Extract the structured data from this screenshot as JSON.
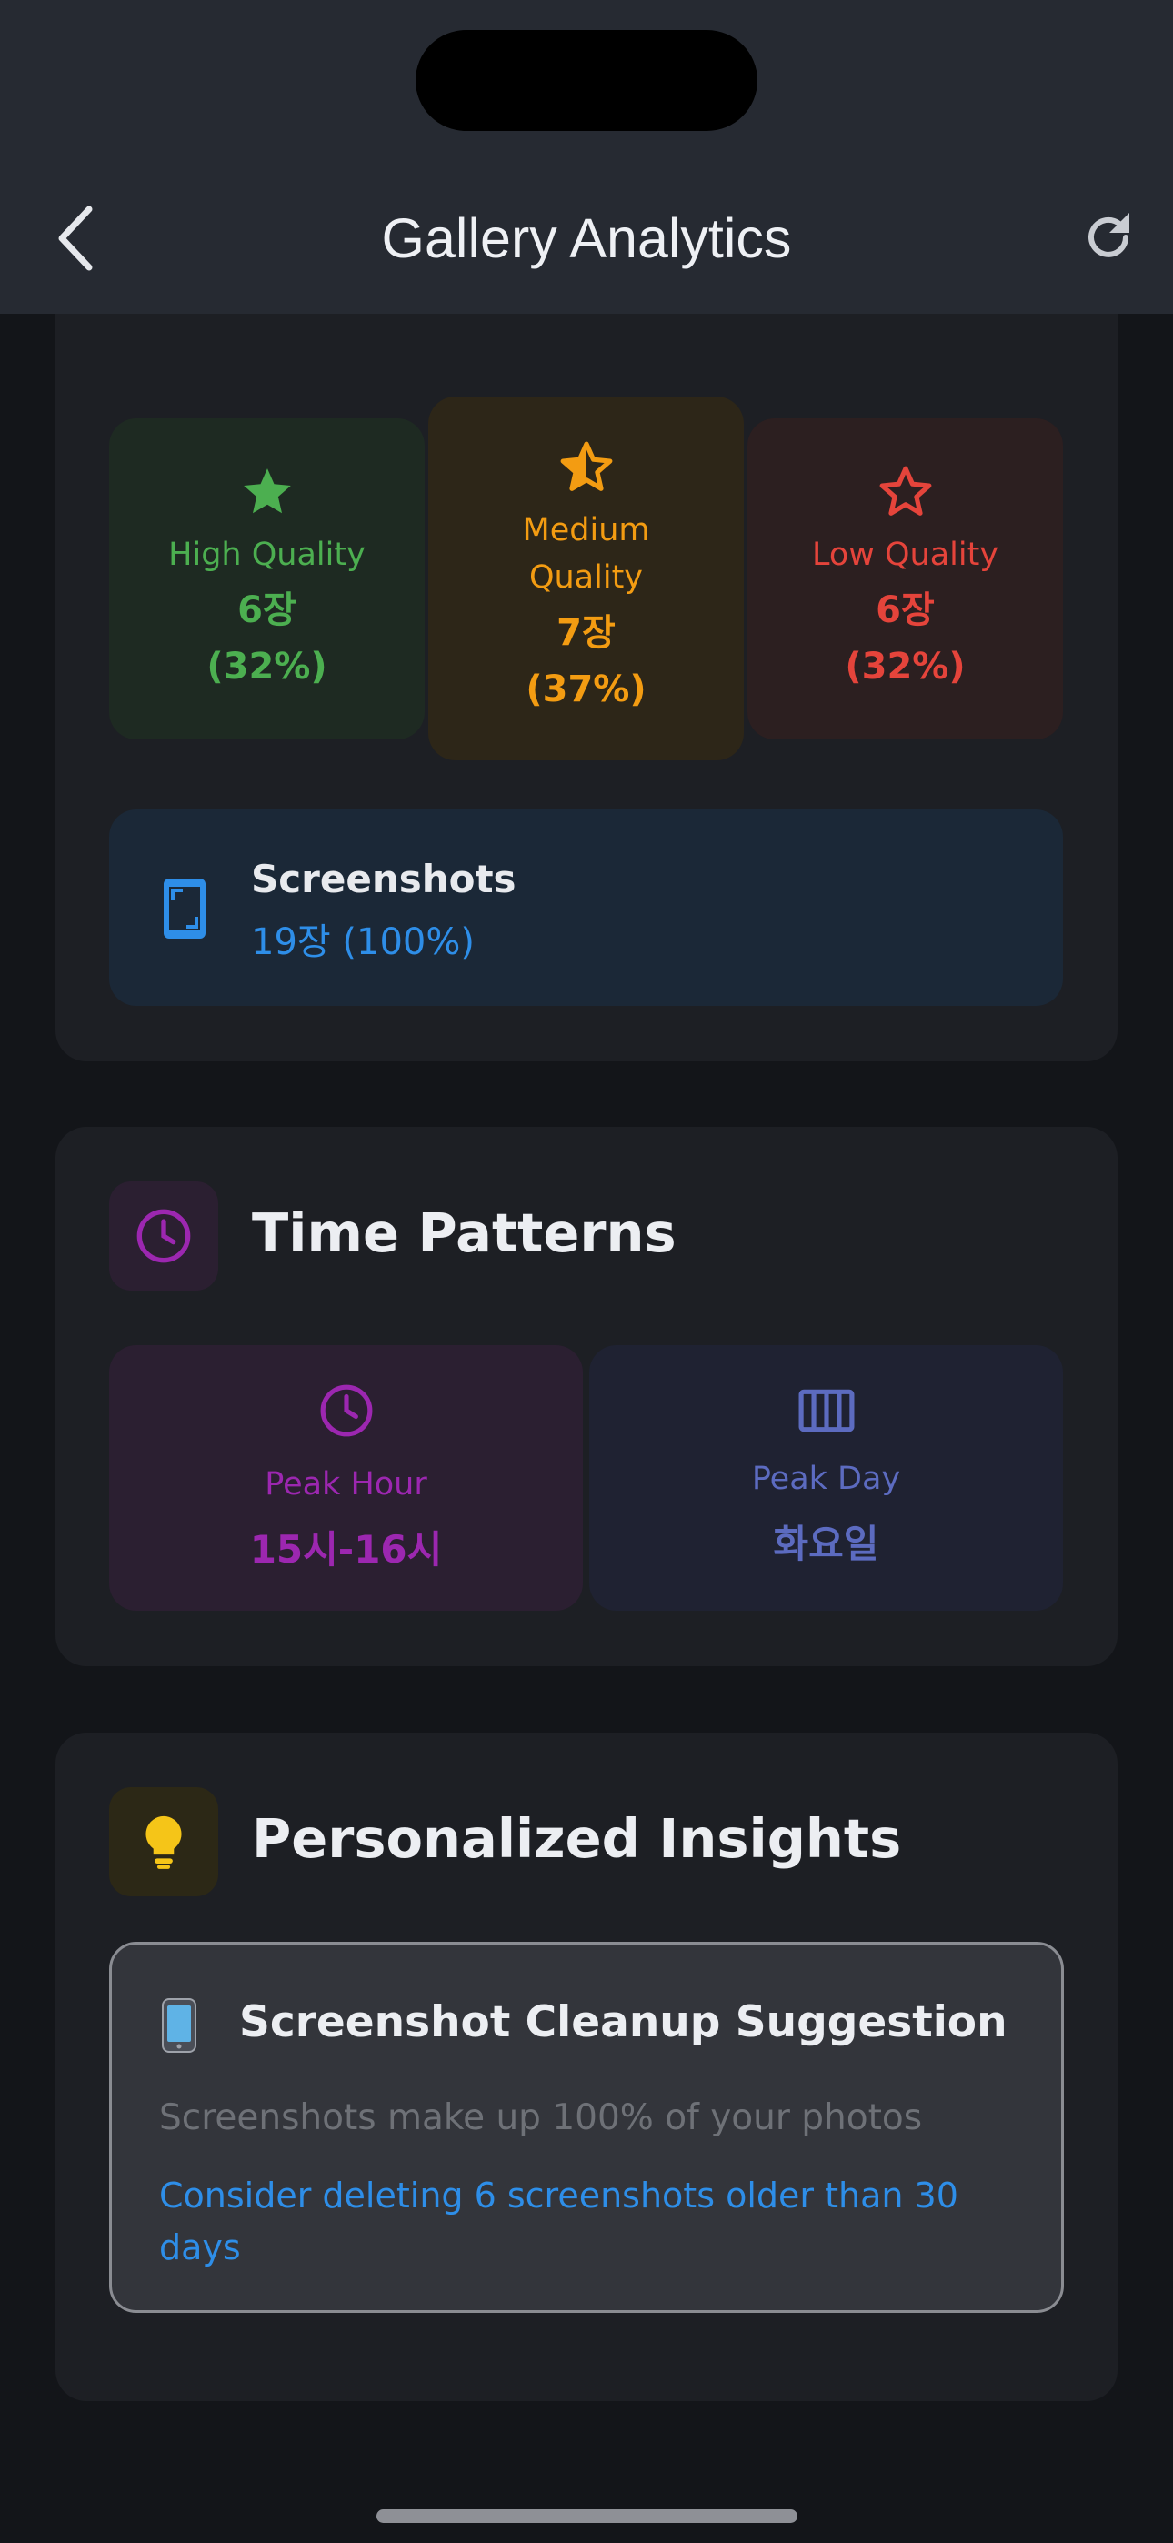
{
  "header": {
    "title": "Gallery Analytics"
  },
  "quality": {
    "high": {
      "label": "High Quality",
      "count": "6장",
      "percent": "(32%)"
    },
    "medium": {
      "label": "Medium\nQuality",
      "count": "7장",
      "percent": "(37%)"
    },
    "low": {
      "label": "Low Quality",
      "count": "6장",
      "percent": "(32%)"
    }
  },
  "screenshots": {
    "title": "Screenshots",
    "value": "19장 (100%)"
  },
  "time_patterns": {
    "title": "Time Patterns",
    "peak_hour": {
      "label": "Peak Hour",
      "value": "15시-16시"
    },
    "peak_day": {
      "label": "Peak Day",
      "value": "화요일"
    }
  },
  "insights": {
    "title": "Personalized Insights",
    "card": {
      "emoji": "📱",
      "title": "Screenshot Cleanup Suggestion",
      "description": "Screenshots make up 100% of your photos",
      "action": "Consider deleting 6 screenshots older than 30 days"
    }
  },
  "colors": {
    "high": "#4caf50",
    "medium": "#f39c12",
    "low": "#e5443b",
    "accent_blue": "#2e8ee8",
    "purple": "#9c27b0",
    "indigo": "#5c6bc0",
    "yellow": "#f5c518"
  },
  "icons": {
    "back": "chevron-left-icon",
    "refresh": "refresh-icon",
    "high": "star-filled-icon",
    "medium": "star-half-icon",
    "low": "star-outline-icon",
    "screenshots": "phone-screenshot-icon",
    "time": "clock-icon",
    "day": "calendar-view-week-icon",
    "insights": "lightbulb-icon"
  }
}
